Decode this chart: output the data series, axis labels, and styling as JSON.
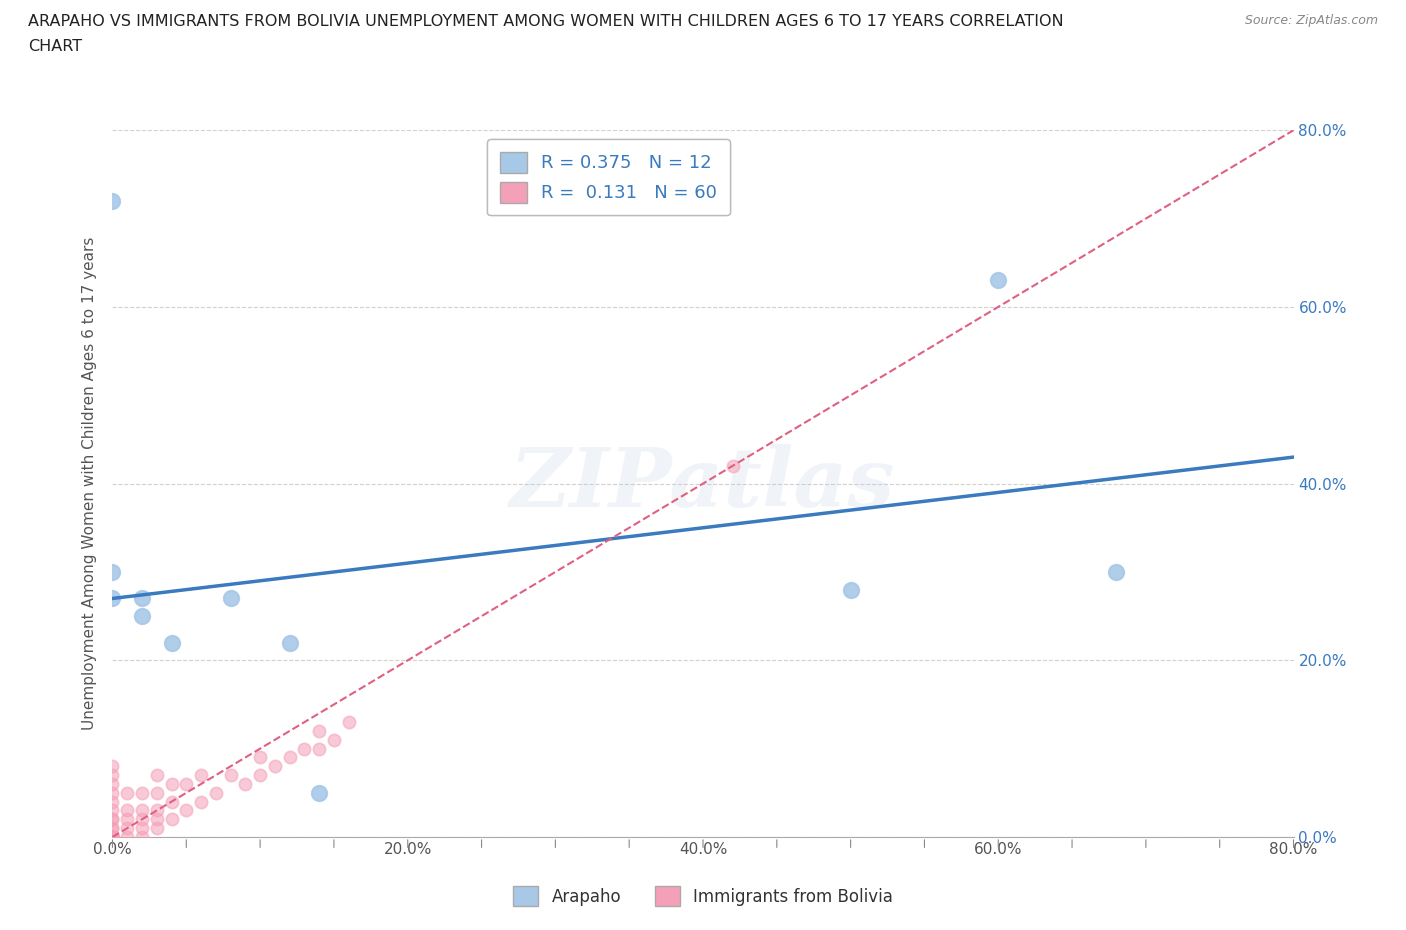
{
  "title_line1": "ARAPAHO VS IMMIGRANTS FROM BOLIVIA UNEMPLOYMENT AMONG WOMEN WITH CHILDREN AGES 6 TO 17 YEARS CORRELATION",
  "title_line2": "CHART",
  "source": "Source: ZipAtlas.com",
  "ylabel": "Unemployment Among Women with Children Ages 6 to 17 years",
  "xlim": [
    0.0,
    0.8
  ],
  "ylim": [
    0.0,
    0.8
  ],
  "arapaho_x": [
    0.0,
    0.0,
    0.0,
    0.02,
    0.02,
    0.04,
    0.08,
    0.12,
    0.14,
    0.5,
    0.6,
    0.68
  ],
  "arapaho_y": [
    0.72,
    0.27,
    0.3,
    0.27,
    0.25,
    0.22,
    0.27,
    0.22,
    0.05,
    0.28,
    0.63,
    0.3
  ],
  "bolivia_x": [
    0.0,
    0.0,
    0.0,
    0.0,
    0.0,
    0.0,
    0.0,
    0.0,
    0.0,
    0.0,
    0.0,
    0.0,
    0.0,
    0.0,
    0.0,
    0.0,
    0.0,
    0.0,
    0.0,
    0.0,
    0.0,
    0.0,
    0.0,
    0.0,
    0.0,
    0.01,
    0.01,
    0.01,
    0.01,
    0.01,
    0.02,
    0.02,
    0.02,
    0.02,
    0.02,
    0.03,
    0.03,
    0.03,
    0.03,
    0.03,
    0.04,
    0.04,
    0.04,
    0.05,
    0.05,
    0.06,
    0.06,
    0.07,
    0.08,
    0.09,
    0.1,
    0.1,
    0.11,
    0.12,
    0.13,
    0.14,
    0.14,
    0.15,
    0.16,
    0.42
  ],
  "bolivia_y": [
    0.0,
    0.0,
    0.0,
    0.0,
    0.0,
    0.0,
    0.0,
    0.0,
    0.0,
    0.0,
    0.0,
    0.0,
    0.0,
    0.0,
    0.0,
    0.01,
    0.01,
    0.02,
    0.02,
    0.03,
    0.04,
    0.05,
    0.06,
    0.07,
    0.08,
    0.0,
    0.01,
    0.02,
    0.03,
    0.05,
    0.0,
    0.01,
    0.02,
    0.03,
    0.05,
    0.01,
    0.02,
    0.03,
    0.05,
    0.07,
    0.02,
    0.04,
    0.06,
    0.03,
    0.06,
    0.04,
    0.07,
    0.05,
    0.07,
    0.06,
    0.07,
    0.09,
    0.08,
    0.09,
    0.1,
    0.1,
    0.12,
    0.11,
    0.13,
    0.42
  ],
  "arapaho_color": "#a8c8e8",
  "bolivia_color": "#f4a0b8",
  "arapaho_line_color": "#3a7abf",
  "bolivia_line_color": "#e06080",
  "R_arapaho": 0.375,
  "N_arapaho": 12,
  "R_bolivia": 0.131,
  "N_bolivia": 60,
  "grid_color": "#cccccc",
  "watermark": "ZIPatlas",
  "background_color": "#ffffff"
}
